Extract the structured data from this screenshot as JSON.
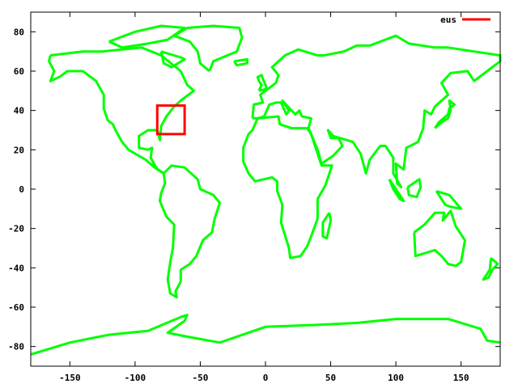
{
  "chart_data": {
    "type": "line",
    "title": "",
    "xlabel": "",
    "ylabel": "",
    "xlim": [
      -180,
      180
    ],
    "ylim": [
      -90,
      90
    ],
    "xticks": [
      -150,
      -100,
      -50,
      0,
      50,
      100,
      150
    ],
    "yticks": [
      -80,
      -60,
      -40,
      -20,
      0,
      20,
      40,
      60,
      80
    ],
    "grid": false,
    "legend": {
      "position": "top-right",
      "entries": [
        {
          "label": "eus",
          "color": "#ff0000"
        }
      ]
    },
    "coastline_color": "#00ff00",
    "coastlines": [
      {
        "name": "north-america",
        "points": [
          [
            -165,
            68
          ],
          [
            -140,
            70
          ],
          [
            -125,
            70
          ],
          [
            -95,
            72
          ],
          [
            -80,
            68
          ],
          [
            -65,
            60
          ],
          [
            -60,
            53
          ],
          [
            -55,
            50
          ],
          [
            -65,
            45
          ],
          [
            -70,
            42
          ],
          [
            -76,
            37
          ],
          [
            -80,
            32
          ],
          [
            -81,
            25
          ],
          [
            -83,
            30
          ],
          [
            -90,
            30
          ],
          [
            -97,
            27
          ],
          [
            -97,
            21
          ],
          [
            -90,
            20
          ],
          [
            -87,
            21
          ],
          [
            -88,
            16
          ],
          [
            -83,
            10
          ],
          [
            -78,
            8
          ],
          [
            -80,
            9
          ],
          [
            -85,
            11
          ],
          [
            -92,
            15
          ],
          [
            -105,
            20
          ],
          [
            -110,
            24
          ],
          [
            -115,
            30
          ],
          [
            -117,
            33
          ],
          [
            -121,
            35
          ],
          [
            -124,
            41
          ],
          [
            -124,
            48
          ],
          [
            -130,
            55
          ],
          [
            -140,
            60
          ],
          [
            -152,
            60
          ],
          [
            -158,
            57
          ],
          [
            -165,
            55
          ],
          [
            -162,
            60
          ],
          [
            -166,
            65
          ],
          [
            -165,
            68
          ]
        ]
      },
      {
        "name": "arctic-islands",
        "points": [
          [
            -120,
            75
          ],
          [
            -100,
            80
          ],
          [
            -80,
            83
          ],
          [
            -62,
            82
          ],
          [
            -75,
            76
          ],
          [
            -90,
            74
          ],
          [
            -110,
            72
          ],
          [
            -120,
            75
          ]
        ]
      },
      {
        "name": "baffin",
        "points": [
          [
            -80,
            70
          ],
          [
            -65,
            67
          ],
          [
            -62,
            66
          ],
          [
            -72,
            62
          ],
          [
            -78,
            64
          ],
          [
            -80,
            70
          ]
        ]
      },
      {
        "name": "greenland",
        "points": [
          [
            -43,
            60
          ],
          [
            -40,
            65
          ],
          [
            -22,
            70
          ],
          [
            -18,
            77
          ],
          [
            -20,
            82
          ],
          [
            -40,
            83
          ],
          [
            -60,
            82
          ],
          [
            -70,
            78
          ],
          [
            -58,
            75
          ],
          [
            -52,
            70
          ],
          [
            -50,
            64
          ],
          [
            -43,
            60
          ]
        ]
      },
      {
        "name": "iceland",
        "points": [
          [
            -24,
            65
          ],
          [
            -14,
            66
          ],
          [
            -14,
            64
          ],
          [
            -22,
            63
          ],
          [
            -24,
            65
          ]
        ]
      },
      {
        "name": "south-america",
        "points": [
          [
            -78,
            8
          ],
          [
            -72,
            12
          ],
          [
            -62,
            11
          ],
          [
            -52,
            5
          ],
          [
            -50,
            0
          ],
          [
            -40,
            -3
          ],
          [
            -35,
            -7
          ],
          [
            -39,
            -15
          ],
          [
            -41,
            -22
          ],
          [
            -48,
            -26
          ],
          [
            -53,
            -34
          ],
          [
            -58,
            -38
          ],
          [
            -65,
            -41
          ],
          [
            -65,
            -47
          ],
          [
            -69,
            -52
          ],
          [
            -68,
            -55
          ],
          [
            -73,
            -53
          ],
          [
            -75,
            -46
          ],
          [
            -73,
            -37
          ],
          [
            -71,
            -30
          ],
          [
            -70,
            -18
          ],
          [
            -76,
            -14
          ],
          [
            -81,
            -6
          ],
          [
            -80,
            -2
          ],
          [
            -77,
            3
          ],
          [
            -78,
            8
          ]
        ]
      },
      {
        "name": "eurasia",
        "points": [
          [
            -10,
            36
          ],
          [
            -9,
            43
          ],
          [
            -2,
            44
          ],
          [
            -4,
            48
          ],
          [
            2,
            51
          ],
          [
            8,
            54
          ],
          [
            10,
            58
          ],
          [
            5,
            62
          ],
          [
            15,
            68
          ],
          [
            25,
            71
          ],
          [
            40,
            68
          ],
          [
            45,
            68
          ],
          [
            60,
            70
          ],
          [
            70,
            73
          ],
          [
            80,
            73
          ],
          [
            100,
            78
          ],
          [
            110,
            74
          ],
          [
            130,
            72
          ],
          [
            140,
            72
          ],
          [
            160,
            70
          ],
          [
            180,
            68
          ],
          [
            180,
            65
          ],
          [
            170,
            60
          ],
          [
            160,
            55
          ],
          [
            155,
            60
          ],
          [
            142,
            59
          ],
          [
            135,
            54
          ],
          [
            140,
            48
          ],
          [
            130,
            42
          ],
          [
            127,
            38
          ],
          [
            122,
            40
          ],
          [
            121,
            31
          ],
          [
            117,
            24
          ],
          [
            108,
            21
          ],
          [
            106,
            10
          ],
          [
            100,
            13
          ],
          [
            101,
            3
          ],
          [
            104,
            1
          ],
          [
            98,
            8
          ],
          [
            98,
            16
          ],
          [
            92,
            22
          ],
          [
            88,
            22
          ],
          [
            80,
            15
          ],
          [
            77,
            8
          ],
          [
            73,
            18
          ],
          [
            67,
            24
          ],
          [
            57,
            26
          ],
          [
            52,
            27
          ],
          [
            48,
            30
          ],
          [
            50,
            26
          ],
          [
            56,
            26
          ],
          [
            59,
            22
          ],
          [
            52,
            17
          ],
          [
            43,
            13
          ],
          [
            40,
            20
          ],
          [
            35,
            28
          ],
          [
            33,
            31
          ],
          [
            35,
            36
          ],
          [
            28,
            37
          ],
          [
            26,
            40
          ],
          [
            23,
            38
          ],
          [
            20,
            40
          ],
          [
            13,
            45
          ],
          [
            18,
            40
          ],
          [
            16,
            38
          ],
          [
            12,
            44
          ],
          [
            8,
            44
          ],
          [
            3,
            43
          ],
          [
            -1,
            37
          ],
          [
            -6,
            36
          ],
          [
            -10,
            36
          ]
        ]
      },
      {
        "name": "britain",
        "points": [
          [
            -5,
            50
          ],
          [
            1,
            51
          ],
          [
            0,
            53
          ],
          [
            -2,
            56
          ],
          [
            -3,
            58
          ],
          [
            -6,
            57
          ],
          [
            -5,
            55
          ],
          [
            -3,
            53
          ],
          [
            -5,
            50
          ]
        ]
      },
      {
        "name": "africa",
        "points": [
          [
            -6,
            36
          ],
          [
            10,
            37
          ],
          [
            11,
            33
          ],
          [
            20,
            31
          ],
          [
            32,
            31
          ],
          [
            35,
            28
          ],
          [
            43,
            12
          ],
          [
            51,
            12
          ],
          [
            46,
            2
          ],
          [
            40,
            -5
          ],
          [
            40,
            -15
          ],
          [
            35,
            -24
          ],
          [
            32,
            -29
          ],
          [
            27,
            -34
          ],
          [
            19,
            -35
          ],
          [
            18,
            -30
          ],
          [
            12,
            -17
          ],
          [
            13,
            -8
          ],
          [
            9,
            -1
          ],
          [
            9,
            4
          ],
          [
            5,
            6
          ],
          [
            -8,
            4
          ],
          [
            -13,
            8
          ],
          [
            -17,
            14
          ],
          [
            -17,
            21
          ],
          [
            -13,
            28
          ],
          [
            -10,
            30
          ],
          [
            -6,
            36
          ]
        ]
      },
      {
        "name": "madagascar",
        "points": [
          [
            49,
            -12
          ],
          [
            50,
            -16
          ],
          [
            47,
            -25
          ],
          [
            44,
            -24
          ],
          [
            44,
            -17
          ],
          [
            49,
            -12
          ]
        ]
      },
      {
        "name": "japan",
        "points": [
          [
            130,
            31
          ],
          [
            135,
            34
          ],
          [
            140,
            36
          ],
          [
            142,
            40
          ],
          [
            141,
            45
          ],
          [
            145,
            43
          ],
          [
            141,
            41
          ],
          [
            140,
            38
          ],
          [
            133,
            34
          ],
          [
            130,
            31
          ]
        ]
      },
      {
        "name": "borneo",
        "points": [
          [
            109,
            1
          ],
          [
            118,
            5
          ],
          [
            119,
            1
          ],
          [
            116,
            -4
          ],
          [
            110,
            -3
          ],
          [
            109,
            1
          ]
        ]
      },
      {
        "name": "sumatra",
        "points": [
          [
            95,
            5
          ],
          [
            106,
            -6
          ],
          [
            103,
            -5
          ],
          [
            98,
            0
          ],
          [
            95,
            5
          ]
        ]
      },
      {
        "name": "new-guinea",
        "points": [
          [
            131,
            -1
          ],
          [
            141,
            -3
          ],
          [
            150,
            -10
          ],
          [
            142,
            -9
          ],
          [
            138,
            -8
          ],
          [
            131,
            -1
          ]
        ]
      },
      {
        "name": "australia",
        "points": [
          [
            114,
            -22
          ],
          [
            122,
            -18
          ],
          [
            130,
            -12
          ],
          [
            137,
            -12
          ],
          [
            136,
            -16
          ],
          [
            142,
            -11
          ],
          [
            146,
            -19
          ],
          [
            153,
            -26
          ],
          [
            150,
            -37
          ],
          [
            146,
            -39
          ],
          [
            140,
            -38
          ],
          [
            135,
            -34
          ],
          [
            130,
            -31
          ],
          [
            115,
            -34
          ],
          [
            114,
            -22
          ]
        ]
      },
      {
        "name": "new-zealand",
        "points": [
          [
            173,
            -35
          ],
          [
            178,
            -38
          ],
          [
            174,
            -41
          ],
          [
            171,
            -45
          ],
          [
            167,
            -46
          ],
          [
            172,
            -41
          ],
          [
            173,
            -35
          ]
        ]
      },
      {
        "name": "antarctica",
        "points": [
          [
            -180,
            -84
          ],
          [
            -150,
            -78
          ],
          [
            -120,
            -74
          ],
          [
            -90,
            -72
          ],
          [
            -65,
            -65
          ],
          [
            -60,
            -64
          ],
          [
            -62,
            -67
          ],
          [
            -75,
            -73
          ],
          [
            -60,
            -75
          ],
          [
            -35,
            -78
          ],
          [
            0,
            -70
          ],
          [
            40,
            -69
          ],
          [
            70,
            -68
          ],
          [
            100,
            -66
          ],
          [
            140,
            -66
          ],
          [
            165,
            -71
          ],
          [
            170,
            -77
          ],
          [
            180,
            -78
          ]
        ]
      }
    ],
    "series": [
      {
        "name": "eus",
        "color": "#ff0000",
        "box": {
          "lon": [
            -83,
            -62
          ],
          "lat": [
            28,
            42.5
          ]
        }
      }
    ]
  }
}
